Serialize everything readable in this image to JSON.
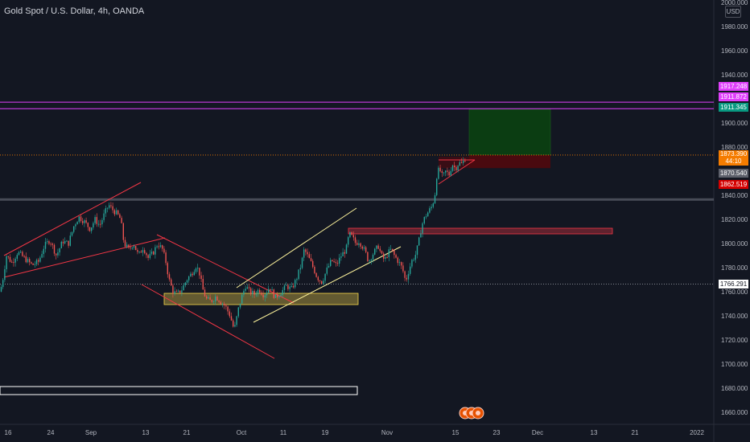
{
  "header": {
    "title": "Gold Spot / U.S. Dollar, 4h, OANDA",
    "currency_button": "USD"
  },
  "colors": {
    "background": "#131722",
    "axis_text": "#b2b5be",
    "magenta_level": "#e040fb",
    "pink_zone": "#f23645",
    "trendline_pink": "#f23645",
    "trendline_cream": "#fff59d",
    "yellow_zone": "#f9d74c",
    "profit_zone": "#0b3d12",
    "loss_zone": "#4a0a0f",
    "up_candle": "#26a69a",
    "down_candle": "#ef5350",
    "current_price": "#f57c00"
  },
  "price_labels": [
    {
      "text": "1917.248",
      "bg": "#e040fb",
      "fg": "#ffffff"
    },
    {
      "text": "1911.872",
      "bg": "#e040fb",
      "fg": "#ffffff"
    },
    {
      "text": "1911.345",
      "bg": "#089981",
      "fg": "#ffffff"
    },
    {
      "text": "1873.390",
      "text2": "44:10",
      "bg": "#f57c00",
      "fg": "#ffffff"
    },
    {
      "text": "1870.540",
      "bg": "#5d606b",
      "fg": "#ffffff"
    },
    {
      "text": "1862.519",
      "bg": "#d50000",
      "fg": "#ffffff"
    },
    {
      "text": "1766.291",
      "bg": "#ffffff",
      "fg": "#131722"
    }
  ],
  "chart_data": {
    "type": "candlestick",
    "symbol": "XAUUSD",
    "interval": "4h",
    "ylim": [
      1655,
      2000
    ],
    "y_ticks": [
      1660,
      1680,
      1700,
      1720,
      1740,
      1760,
      1780,
      1800,
      1820,
      1840,
      1860,
      1880,
      1900,
      1920,
      1940,
      1960,
      1980,
      2000
    ],
    "y_tick_labels": [
      "1660.000",
      "1680.000",
      "1700.000",
      "1720.000",
      "1740.000",
      "1760.000",
      "1780.000",
      "1800.000",
      "1820.000",
      "1840.000",
      "1860.000",
      "1880.000",
      "1900.000",
      "1920.000",
      "1940.000",
      "1960.000",
      "1980.000",
      "2000.000"
    ],
    "x_tick_labels": [
      "16",
      "24",
      "Sep",
      "13",
      "21",
      "Oct",
      "11",
      "19",
      "Nov",
      "15",
      "23",
      "Dec",
      "13",
      "21",
      "2022"
    ],
    "price_path": [
      [
        0,
        1760
      ],
      [
        3,
        1768
      ],
      [
        8,
        1790
      ],
      [
        15,
        1784
      ],
      [
        22,
        1793
      ],
      [
        30,
        1788
      ],
      [
        40,
        1782
      ],
      [
        48,
        1785
      ],
      [
        55,
        1798
      ],
      [
        62,
        1803
      ],
      [
        70,
        1790
      ],
      [
        78,
        1802
      ],
      [
        85,
        1800
      ],
      [
        92,
        1815
      ],
      [
        98,
        1822
      ],
      [
        105,
        1818
      ],
      [
        112,
        1812
      ],
      [
        118,
        1820
      ],
      [
        124,
        1815
      ],
      [
        130,
        1825
      ],
      [
        135,
        1832
      ],
      [
        140,
        1828
      ],
      [
        146,
        1824
      ],
      [
        150,
        1820
      ],
      [
        154,
        1800
      ],
      [
        160,
        1795
      ],
      [
        166,
        1800
      ],
      [
        172,
        1790
      ],
      [
        178,
        1797
      ],
      [
        184,
        1788
      ],
      [
        190,
        1792
      ],
      [
        196,
        1800
      ],
      [
        202,
        1795
      ],
      [
        206,
        1785
      ],
      [
        210,
        1770
      ],
      [
        215,
        1760
      ],
      [
        220,
        1758
      ],
      [
        226,
        1762
      ],
      [
        232,
        1770
      ],
      [
        238,
        1775
      ],
      [
        244,
        1782
      ],
      [
        248,
        1775
      ],
      [
        252,
        1762
      ],
      [
        256,
        1754
      ],
      [
        262,
        1752
      ],
      [
        268,
        1756
      ],
      [
        274,
        1752
      ],
      [
        280,
        1748
      ],
      [
        286,
        1740
      ],
      [
        291,
        1728
      ],
      [
        296,
        1745
      ],
      [
        300,
        1755
      ],
      [
        305,
        1765
      ],
      [
        310,
        1760
      ],
      [
        316,
        1758
      ],
      [
        322,
        1762
      ],
      [
        328,
        1757
      ],
      [
        335,
        1764
      ],
      [
        342,
        1755
      ],
      [
        350,
        1760
      ],
      [
        356,
        1765
      ],
      [
        362,
        1762
      ],
      [
        368,
        1770
      ],
      [
        374,
        1782
      ],
      [
        378,
        1795
      ],
      [
        382,
        1790
      ],
      [
        388,
        1782
      ],
      [
        394,
        1772
      ],
      [
        400,
        1768
      ],
      [
        406,
        1778
      ],
      [
        412,
        1786
      ],
      [
        418,
        1782
      ],
      [
        424,
        1790
      ],
      [
        430,
        1795
      ],
      [
        434,
        1808
      ],
      [
        438,
        1805
      ],
      [
        442,
        1800
      ],
      [
        446,
        1802
      ],
      [
        450,
        1798
      ],
      [
        454,
        1793
      ],
      [
        458,
        1785
      ],
      [
        462,
        1790
      ],
      [
        466,
        1794
      ],
      [
        470,
        1798
      ],
      [
        474,
        1790
      ],
      [
        478,
        1786
      ],
      [
        482,
        1792
      ],
      [
        486,
        1795
      ],
      [
        490,
        1790
      ],
      [
        494,
        1786
      ],
      [
        498,
        1782
      ],
      [
        502,
        1775
      ],
      [
        504,
        1768
      ],
      [
        508,
        1778
      ],
      [
        512,
        1786
      ],
      [
        516,
        1790
      ],
      [
        520,
        1800
      ],
      [
        524,
        1815
      ],
      [
        528,
        1822
      ],
      [
        532,
        1826
      ],
      [
        536,
        1830
      ],
      [
        540,
        1838
      ],
      [
        543,
        1858
      ],
      [
        546,
        1862
      ],
      [
        550,
        1855
      ],
      [
        554,
        1860
      ],
      [
        558,
        1857
      ],
      [
        562,
        1866
      ],
      [
        566,
        1862
      ],
      [
        570,
        1867
      ],
      [
        574,
        1866
      ],
      [
        578,
        1870.54
      ]
    ],
    "horizontal_levels": [
      1917.248,
      1911.872,
      1766.291,
      1836.5
    ],
    "current_price": 1873.39,
    "last_close": 1870.54,
    "long_position": {
      "target": 1911.345,
      "entry": 1873.39,
      "stop": 1862.519
    },
    "annotations": [
      "rising pink channel",
      "falling pink channel",
      "rising cream channel",
      "pink supply zone",
      "yellow demand zone",
      "ascending triangle"
    ],
    "grid": false,
    "legend": "none"
  }
}
